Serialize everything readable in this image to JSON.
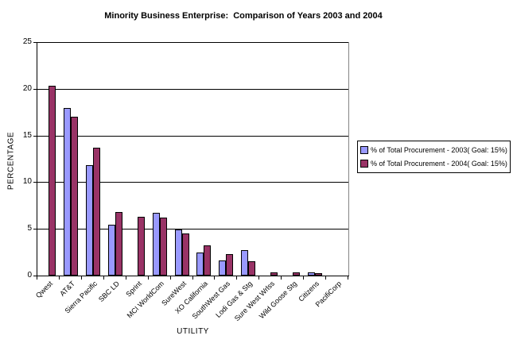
{
  "page": {
    "background": "#FFFFFF"
  },
  "chart_data": {
    "type": "bar",
    "title": "Minority Business Enterprise:  Comparison of Years 2003 and 2004",
    "xlabel": "UTILITY",
    "ylabel": "PERCENTAGE",
    "ylim": [
      0,
      25
    ],
    "yticks": [
      0,
      5,
      10,
      15,
      20,
      25
    ],
    "grid": true,
    "legend_position": "right",
    "categories": [
      "Qwest",
      "AT&T",
      "Sierra Pacific",
      "SBC LD",
      "Sprint",
      "MCI WorldCom",
      "SureWest",
      "XO California",
      "SouthWest Gas",
      "Lodi Gas & Stg",
      "Sure West Wrlss",
      "Wild Goose Stg",
      "Citizens",
      "PacifiCorp"
    ],
    "series": [
      {
        "name": "% of Total Procurement - 2003( Goal: 15%)",
        "color": "#9999FF",
        "values": [
          0,
          17.9,
          11.8,
          5.4,
          0,
          6.7,
          4.9,
          2.5,
          1.6,
          2.7,
          0,
          0,
          0.3,
          0
        ]
      },
      {
        "name": "% of Total Procurement - 2004( Goal: 15%)",
        "color": "#993366",
        "values": [
          20.3,
          17.0,
          13.7,
          6.8,
          6.3,
          6.2,
          4.5,
          3.2,
          2.3,
          1.5,
          0.3,
          0.3,
          0.25,
          0
        ]
      }
    ]
  }
}
